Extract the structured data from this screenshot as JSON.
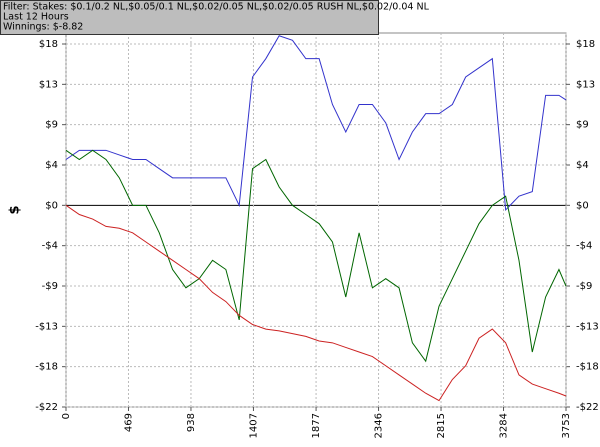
{
  "chart_data": {
    "type": "line",
    "header": [
      "Filter: Stakes: $0.1/0.2 NL,$0.05/0.1 NL,$0.02/0.05 NL,$0.02/0.05 RUSH NL,$0.02/0.04 NL",
      "Last  12 Hours",
      "Winnings: $-8.82"
    ],
    "ylabel": "$",
    "x": [
      0,
      100,
      200,
      300,
      400,
      500,
      600,
      700,
      800,
      900,
      1000,
      1100,
      1200,
      1300,
      1400,
      1500,
      1600,
      1700,
      1800,
      1900,
      2000,
      2100,
      2200,
      2300,
      2400,
      2500,
      2600,
      2700,
      2800,
      2900,
      3000,
      3100,
      3200,
      3300,
      3400,
      3500,
      3600,
      3700,
      3753
    ],
    "series": [
      {
        "color": "#3333cc",
        "values": [
          5,
          6,
          6,
          6,
          5.5,
          5,
          5,
          4,
          3,
          3,
          3,
          3,
          3,
          0,
          14,
          16,
          18.5,
          18,
          16,
          16,
          11,
          8,
          11,
          11,
          9,
          5,
          8,
          10,
          10,
          11,
          14,
          15,
          16,
          -0.5,
          1,
          1.5,
          12,
          12,
          11.5
        ]
      },
      {
        "color": "#006600",
        "values": [
          6,
          5,
          6,
          5,
          3,
          0,
          0,
          -3,
          -7,
          -9,
          -8,
          -6,
          -7,
          -12.5,
          4,
          5,
          2,
          0,
          -1,
          -2,
          -4,
          -10,
          -3,
          -9,
          -8,
          -9,
          -15,
          -17,
          -11,
          -8,
          -5,
          -2,
          0,
          1,
          -6,
          -16,
          -10,
          -7,
          -8.82
        ]
      },
      {
        "color": "#cc2222",
        "values": [
          0,
          -1,
          -1.5,
          -2.3,
          -2.5,
          -3,
          -4,
          -5,
          -6,
          -7,
          -8,
          -9.5,
          -10.5,
          -12,
          -13,
          -13.5,
          -13.7,
          -14,
          -14.3,
          -14.8,
          -15,
          -15.5,
          -16,
          -16.5,
          -17.5,
          -18.5,
          -19.5,
          -20.5,
          -21.3,
          -19,
          -17.5,
          -14.5,
          -13.5,
          -15,
          -18.5,
          -19.5,
          -20,
          -20.5,
          -20.8
        ]
      }
    ],
    "xlim": [
      0,
      3753
    ],
    "xticks": [
      0,
      469,
      938,
      1407,
      1877,
      2346,
      2815,
      3284,
      3753
    ],
    "ylim": [
      -22,
      18.8
    ],
    "yticks": [
      {
        "value": 17.6,
        "label": "$18"
      },
      {
        "value": 13.2,
        "label": "$13"
      },
      {
        "value": 8.8,
        "label": "$9"
      },
      {
        "value": 4.4,
        "label": "$4"
      },
      {
        "value": 0,
        "label": "$0"
      },
      {
        "value": -4.4,
        "label": "-$4"
      },
      {
        "value": -8.8,
        "label": "-$9"
      },
      {
        "value": -13.2,
        "label": "-$13"
      },
      {
        "value": -17.6,
        "label": "-$18"
      },
      {
        "value": -22,
        "label": "-$22"
      }
    ],
    "grid": true
  }
}
